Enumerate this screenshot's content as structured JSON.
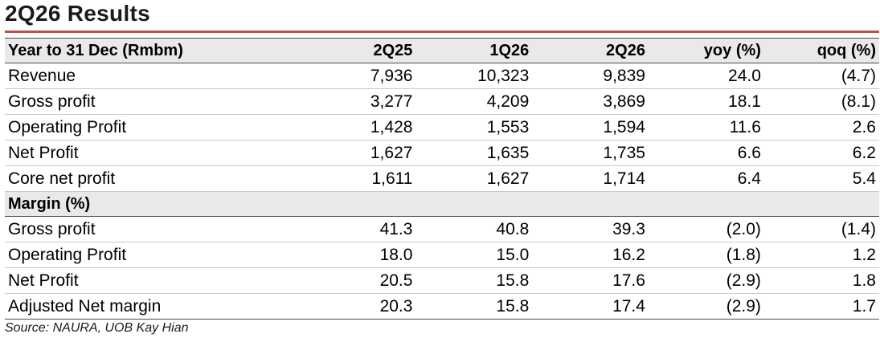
{
  "title": "2Q26 Results",
  "table": {
    "header": [
      "Year to 31 Dec (Rmbm)",
      "2Q25",
      "1Q26",
      "2Q26",
      "yoy (%)",
      "qoq (%)"
    ],
    "rows": [
      {
        "label": "Revenue",
        "values": [
          "7,936",
          "10,323",
          "9,839",
          "24.0",
          "(4.7)"
        ]
      },
      {
        "label": "Gross profit",
        "values": [
          "3,277",
          "4,209",
          "3,869",
          "18.1",
          "(8.1)"
        ]
      },
      {
        "label": "Operating Profit",
        "values": [
          "1,428",
          "1,553",
          "1,594",
          "11.6",
          "2.6"
        ]
      },
      {
        "label": "Net Profit",
        "values": [
          "1,627",
          "1,635",
          "1,735",
          "6.6",
          "6.2"
        ]
      },
      {
        "label": "Core net profit",
        "values": [
          "1,611",
          "1,627",
          "1,714",
          "6.4",
          "5.4"
        ]
      }
    ],
    "section": "Margin (%)",
    "margin_rows": [
      {
        "label": "Gross profit",
        "values": [
          "41.3",
          "40.8",
          "39.3",
          "(2.0)",
          "(1.4)"
        ]
      },
      {
        "label": "Operating Profit",
        "values": [
          "18.0",
          "15.0",
          "16.2",
          "(1.8)",
          "1.2"
        ]
      },
      {
        "label": "Net Profit",
        "values": [
          "20.5",
          "15.8",
          "17.6",
          "(2.9)",
          "1.8"
        ]
      },
      {
        "label": "Adjusted Net margin",
        "values": [
          "20.3",
          "15.8",
          "17.4",
          "(2.9)",
          "1.7"
        ]
      }
    ]
  },
  "source": "Source: NAURA, UOB Kay Hian"
}
